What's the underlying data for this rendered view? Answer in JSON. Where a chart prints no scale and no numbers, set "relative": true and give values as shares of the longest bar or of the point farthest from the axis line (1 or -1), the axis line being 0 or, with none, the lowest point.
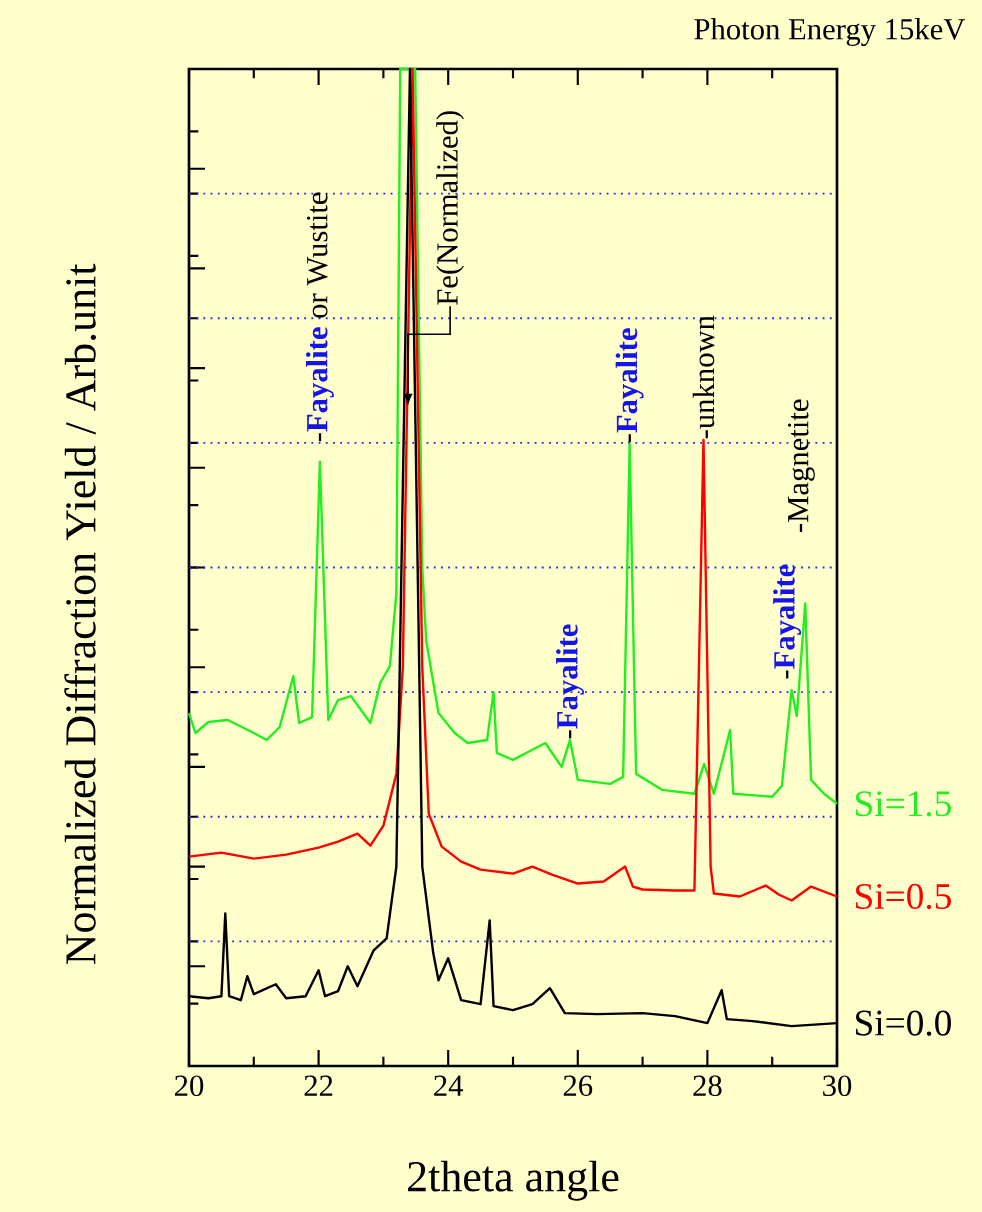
{
  "chart_data": {
    "type": "line",
    "title": "Photon Energy 15keV",
    "xlabel": "2theta angle",
    "ylabel": "Normalized Diffraction Yield / Arb.unit",
    "relative": true,
    "legend": "right",
    "xlim": [
      20,
      30
    ],
    "xticks": [
      20,
      22,
      24,
      26,
      28,
      30
    ],
    "ref_lines": [
      {
        "axis": "y",
        "value": 0.125,
        "color": "#2828e6",
        "line_style": "dotted"
      },
      {
        "axis": "y",
        "value": 0.25,
        "color": "#2828e6",
        "line_style": "dotted"
      },
      {
        "axis": "y",
        "value": 0.375,
        "color": "#2828e6",
        "line_style": "dotted"
      },
      {
        "axis": "y",
        "value": 0.5,
        "color": "#2828e6",
        "line_style": "dotted"
      },
      {
        "axis": "y",
        "value": 0.625,
        "color": "#2828e6",
        "line_style": "dotted"
      },
      {
        "axis": "y",
        "value": 0.75,
        "color": "#2828e6",
        "line_style": "dotted"
      },
      {
        "axis": "y",
        "value": 0.875,
        "color": "#2828e6",
        "line_style": "dotted"
      }
    ],
    "series": [
      {
        "name": "Si=1.5",
        "color": "#22ee22",
        "x": [
          20.0,
          20.1,
          20.3,
          20.6,
          21.0,
          21.2,
          21.4,
          21.61,
          21.7,
          21.9,
          22.02,
          22.15,
          22.3,
          22.5,
          22.8,
          22.95,
          23.1,
          23.2,
          23.26,
          23.49,
          23.6,
          23.66,
          23.85,
          24.1,
          24.3,
          24.6,
          24.7,
          24.75,
          25.0,
          25.5,
          25.75,
          25.88,
          26.0,
          26.5,
          26.7,
          26.8,
          26.9,
          27.3,
          27.8,
          27.95,
          28.1,
          28.35,
          28.4,
          29.0,
          29.15,
          29.3,
          29.38,
          29.51,
          29.6,
          29.8,
          30.0
        ],
        "values": [
          0.354,
          0.334,
          0.345,
          0.347,
          0.334,
          0.327,
          0.34,
          0.391,
          0.344,
          0.35,
          0.606,
          0.347,
          0.367,
          0.371,
          0.344,
          0.384,
          0.401,
          0.474,
          1.0,
          1.0,
          0.5,
          0.427,
          0.354,
          0.334,
          0.324,
          0.327,
          0.375,
          0.314,
          0.307,
          0.324,
          0.3,
          0.327,
          0.287,
          0.283,
          0.29,
          0.624,
          0.293,
          0.277,
          0.273,
          0.303,
          0.273,
          0.337,
          0.273,
          0.27,
          0.281,
          0.377,
          0.351,
          0.464,
          0.287,
          0.273,
          0.263
        ]
      },
      {
        "name": "Si=0.5",
        "color": "#ff0000",
        "x": [
          20.0,
          20.5,
          21.0,
          21.5,
          22.0,
          22.3,
          22.6,
          22.8,
          23.0,
          23.2,
          23.3,
          23.45,
          23.6,
          23.7,
          23.9,
          24.2,
          24.5,
          25.0,
          25.3,
          25.6,
          26.0,
          26.4,
          26.73,
          26.85,
          27.0,
          27.5,
          27.8,
          27.94,
          28.05,
          28.1,
          28.5,
          28.9,
          29.1,
          29.3,
          29.6,
          30.0
        ],
        "values": [
          0.21,
          0.214,
          0.208,
          0.212,
          0.219,
          0.225,
          0.233,
          0.221,
          0.241,
          0.293,
          0.4,
          1.0,
          0.4,
          0.253,
          0.22,
          0.205,
          0.197,
          0.193,
          0.2,
          0.192,
          0.183,
          0.185,
          0.2,
          0.18,
          0.177,
          0.176,
          0.176,
          0.628,
          0.2,
          0.173,
          0.17,
          0.181,
          0.172,
          0.166,
          0.18,
          0.17
        ]
      },
      {
        "name": "Si=0.0",
        "color": "#000000",
        "x": [
          20.0,
          20.3,
          20.5,
          20.56,
          20.62,
          20.8,
          20.9,
          21.0,
          21.34,
          21.5,
          21.8,
          22.0,
          22.1,
          22.3,
          22.45,
          22.6,
          22.85,
          23.05,
          23.2,
          23.41,
          23.6,
          23.77,
          23.85,
          24.0,
          24.2,
          24.5,
          24.64,
          24.7,
          25.0,
          25.3,
          25.57,
          25.8,
          26.3,
          27.0,
          27.5,
          28.0,
          28.22,
          28.3,
          28.7,
          29.3,
          30.0
        ],
        "values": [
          0.07,
          0.068,
          0.07,
          0.153,
          0.07,
          0.066,
          0.09,
          0.072,
          0.082,
          0.068,
          0.07,
          0.096,
          0.07,
          0.075,
          0.1,
          0.08,
          0.116,
          0.128,
          0.2,
          1.0,
          0.2,
          0.113,
          0.086,
          0.108,
          0.066,
          0.062,
          0.146,
          0.06,
          0.056,
          0.062,
          0.078,
          0.053,
          0.052,
          0.053,
          0.05,
          0.043,
          0.076,
          0.047,
          0.045,
          0.04,
          0.043
        ]
      }
    ],
    "annotations": [
      {
        "text": "-**Fayalite** or Wustite",
        "x": 22.02,
        "y": 0.606
      },
      {
        "text": "Fe(Normalized)",
        "x": 23.38,
        "y": 0.662
      },
      {
        "text": "-**Fayalite**",
        "x": 25.88,
        "y": 0.327
      },
      {
        "text": "-**Fayalite**",
        "x": 26.8,
        "y": 0.624
      },
      {
        "text": "-unknown",
        "x": 27.94,
        "y": 0.628
      },
      {
        "text": "-**Fayalite**",
        "x": 29.3,
        "y": 0.377
      },
      {
        "text": "-Magnetite",
        "x": 29.51,
        "y": 0.464
      }
    ]
  }
}
